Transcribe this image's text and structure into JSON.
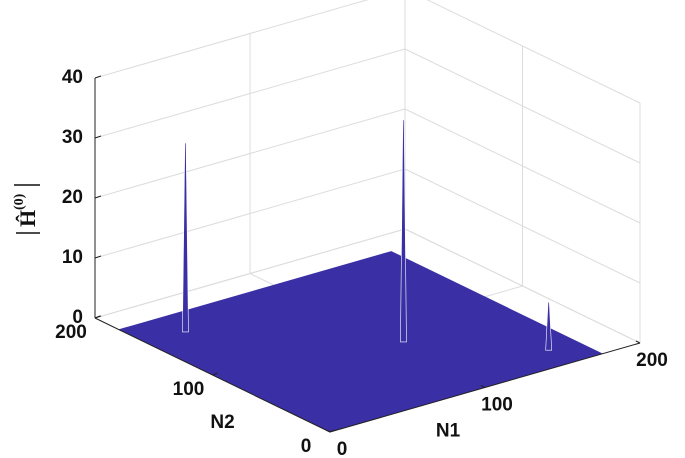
{
  "chart_data": {
    "type": "surface",
    "xlabel": "N1",
    "ylabel": "N2",
    "zlabel": "Ĥ",
    "zlabel_sup": "(0)",
    "xlim": [
      0,
      200
    ],
    "ylim": [
      0,
      200
    ],
    "zlim": [
      0,
      40
    ],
    "xticks": [
      0,
      100,
      200
    ],
    "yticks": [
      0,
      100,
      200
    ],
    "zticks": [
      0,
      10,
      20,
      30,
      40
    ],
    "grid": true,
    "surface": {
      "n1": [
        0,
        176
      ],
      "n2": [
        0,
        180
      ],
      "z": 0,
      "color": "#3b2fa6"
    },
    "peaks": [
      {
        "n1": 25,
        "n2": 156,
        "z": 31.5
      },
      {
        "n1": 105,
        "n2": 76,
        "z": 37
      },
      {
        "n1": 157,
        "n2": 21,
        "z": 8
      }
    ]
  }
}
